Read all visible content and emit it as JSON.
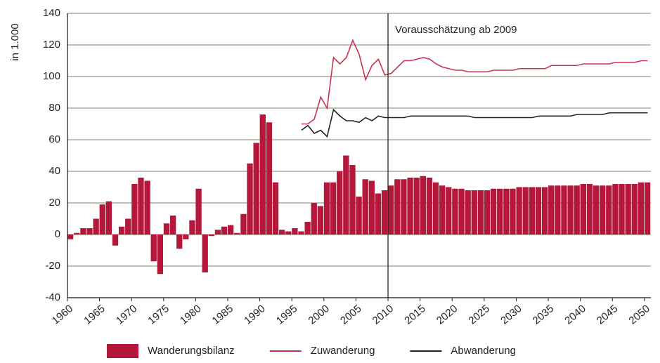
{
  "chart_data": {
    "type": "bar-line",
    "y_label": "in 1.000",
    "annotation": {
      "text": "Vorausschätzung ab 2009",
      "x": 2010
    },
    "xlim": [
      1960,
      2050
    ],
    "xticks": [
      1960,
      1965,
      1970,
      1975,
      1980,
      1985,
      1990,
      1995,
      2000,
      2005,
      2010,
      2015,
      2020,
      2025,
      2030,
      2035,
      2040,
      2045,
      2050
    ],
    "ylim": [
      -40,
      140
    ],
    "yticks": [
      -40,
      -20,
      0,
      20,
      40,
      60,
      80,
      100,
      120,
      140
    ],
    "grid": true,
    "x": [
      1960,
      1961,
      1962,
      1963,
      1964,
      1965,
      1966,
      1967,
      1968,
      1969,
      1970,
      1971,
      1972,
      1973,
      1974,
      1975,
      1976,
      1977,
      1978,
      1979,
      1980,
      1981,
      1982,
      1983,
      1984,
      1985,
      1986,
      1987,
      1988,
      1989,
      1990,
      1991,
      1992,
      1993,
      1994,
      1995,
      1996,
      1997,
      1998,
      1999,
      2000,
      2001,
      2002,
      2003,
      2004,
      2005,
      2006,
      2007,
      2008,
      2009,
      2010,
      2011,
      2012,
      2013,
      2014,
      2015,
      2016,
      2017,
      2018,
      2019,
      2020,
      2021,
      2022,
      2023,
      2024,
      2025,
      2026,
      2027,
      2028,
      2029,
      2030,
      2031,
      2032,
      2033,
      2034,
      2035,
      2036,
      2037,
      2038,
      2039,
      2040,
      2041,
      2042,
      2043,
      2044,
      2045,
      2046,
      2047,
      2048,
      2049,
      2050
    ],
    "series": [
      {
        "name": "Wanderungsbilanz",
        "kind": "bar",
        "color": "#b5173a",
        "values": [
          -3,
          1,
          4,
          4,
          10,
          19,
          21,
          -7,
          5,
          10,
          32,
          36,
          34,
          -17,
          -25,
          7,
          12,
          -9,
          -3,
          9,
          29,
          -24,
          -1,
          3,
          5,
          6,
          1,
          13,
          45,
          58,
          76,
          71,
          33,
          3,
          2,
          4,
          2,
          8,
          20,
          18,
          33,
          33,
          40,
          50,
          44,
          24,
          35,
          34,
          26,
          28,
          31,
          35,
          35,
          36,
          36,
          37,
          36,
          33,
          31,
          30,
          29,
          29,
          28,
          28,
          28,
          28,
          29,
          29,
          29,
          29,
          30,
          30,
          30,
          30,
          30,
          31,
          31,
          31,
          31,
          31,
          32,
          32,
          31,
          31,
          31,
          32,
          32,
          32,
          32,
          33,
          33
        ]
      },
      {
        "name": "Zuwanderung",
        "kind": "line",
        "color": "#c8344f",
        "values": [
          null,
          null,
          null,
          null,
          null,
          null,
          null,
          null,
          null,
          null,
          null,
          null,
          null,
          null,
          null,
          null,
          null,
          null,
          null,
          null,
          null,
          null,
          null,
          null,
          null,
          null,
          null,
          null,
          null,
          null,
          null,
          null,
          null,
          null,
          null,
          null,
          70,
          70,
          73,
          87,
          80,
          112,
          108,
          112,
          123,
          114,
          98,
          107,
          111,
          101,
          102,
          106,
          110,
          110,
          111,
          112,
          111,
          108,
          106,
          105,
          104,
          104,
          103,
          103,
          103,
          103,
          104,
          104,
          104,
          104,
          105,
          105,
          105,
          105,
          105,
          107,
          107,
          107,
          107,
          107,
          108,
          108,
          108,
          108,
          108,
          109,
          109,
          109,
          109,
          110,
          110
        ]
      },
      {
        "name": "Abwanderung",
        "kind": "line",
        "color": "#222222",
        "values": [
          null,
          null,
          null,
          null,
          null,
          null,
          null,
          null,
          null,
          null,
          null,
          null,
          null,
          null,
          null,
          null,
          null,
          null,
          null,
          null,
          null,
          null,
          null,
          null,
          null,
          null,
          null,
          null,
          null,
          null,
          null,
          null,
          null,
          null,
          null,
          null,
          66,
          69,
          64,
          66,
          62,
          79,
          75,
          72,
          72,
          71,
          74,
          72,
          75,
          74,
          74,
          74,
          74,
          75,
          75,
          75,
          75,
          75,
          75,
          75,
          75,
          75,
          75,
          74,
          74,
          74,
          74,
          74,
          74,
          74,
          74,
          74,
          74,
          75,
          75,
          75,
          75,
          75,
          75,
          76,
          76,
          76,
          76,
          76,
          77,
          77,
          77,
          77,
          77,
          77,
          77
        ]
      }
    ]
  }
}
